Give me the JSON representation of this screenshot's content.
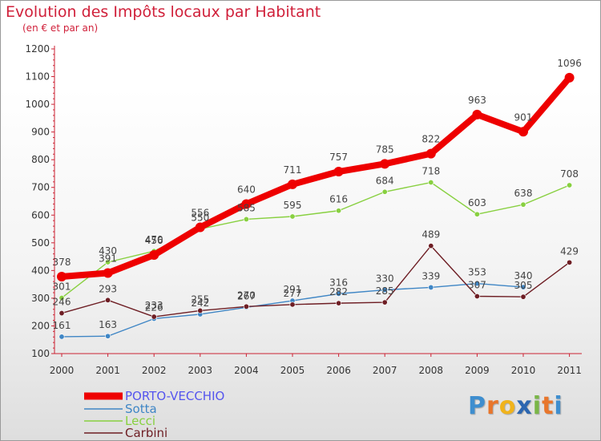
{
  "header": {
    "title": "Evolution des Impôts locaux par Habitant",
    "subtitle": "(en € et par an)"
  },
  "logo": {
    "text": "Proxiti",
    "letters": [
      "P",
      "r",
      "o",
      "x",
      "i",
      "t",
      "i"
    ],
    "colors": [
      "#3e8ecf",
      "#e8762c",
      "#f0b31c",
      "#2c66b0",
      "#7ab648",
      "#e8762c",
      "#3e8ecf"
    ]
  },
  "chart_data": {
    "type": "line",
    "title": "Evolution des Impôts locaux par Habitant",
    "subtitle": "(en € et par an)",
    "xlabel": "",
    "ylabel": "",
    "categories": [
      "2000",
      "2001",
      "2002",
      "2003",
      "2004",
      "2005",
      "2006",
      "2007",
      "2008",
      "2009",
      "2010",
      "2011"
    ],
    "ylim": [
      100,
      1200
    ],
    "yticks": [
      100,
      200,
      300,
      400,
      500,
      600,
      700,
      800,
      900,
      1000,
      1100,
      1200
    ],
    "grid": false,
    "legend": "bottom-left",
    "series": [
      {
        "name": "PORTO-VECCHIO",
        "color": "#ee0000",
        "label_color": "#5555ee",
        "emphasis": true,
        "values": [
          378,
          391,
          456,
          556,
          640,
          711,
          757,
          785,
          822,
          963,
          901,
          1096
        ],
        "labels": [
          "378",
          "391",
          "456",
          "556",
          "640",
          "711",
          "757",
          "785",
          "822",
          "963",
          "901",
          "1096"
        ]
      },
      {
        "name": "Sotta",
        "color": "#3f86c5",
        "label_color": "#3f86c5",
        "values": [
          161,
          163,
          226,
          242,
          267,
          291,
          316,
          330,
          339,
          353,
          340,
          null
        ],
        "labels": [
          "161",
          "163",
          "226",
          "242",
          "267",
          "291",
          "316",
          "330",
          "339",
          "353",
          "340",
          ""
        ]
      },
      {
        "name": "Lecci",
        "color": "#88d040",
        "label_color": "#88d040",
        "values": [
          301,
          430,
          470,
          550,
          585,
          595,
          616,
          684,
          718,
          603,
          638,
          708
        ],
        "labels": [
          "301",
          "430",
          "470",
          "550",
          "585",
          "595",
          "616",
          "684",
          "718",
          "603",
          "638",
          "708"
        ]
      },
      {
        "name": "Carbini",
        "color": "#6e1e24",
        "label_color": "#6e1e24",
        "values": [
          246,
          293,
          233,
          255,
          270,
          277,
          282,
          285,
          489,
          307,
          305,
          429
        ],
        "labels": [
          "246",
          "293",
          "233",
          "255",
          "270",
          "277",
          "282",
          "285",
          "489",
          "307",
          "305",
          "429"
        ]
      }
    ]
  }
}
